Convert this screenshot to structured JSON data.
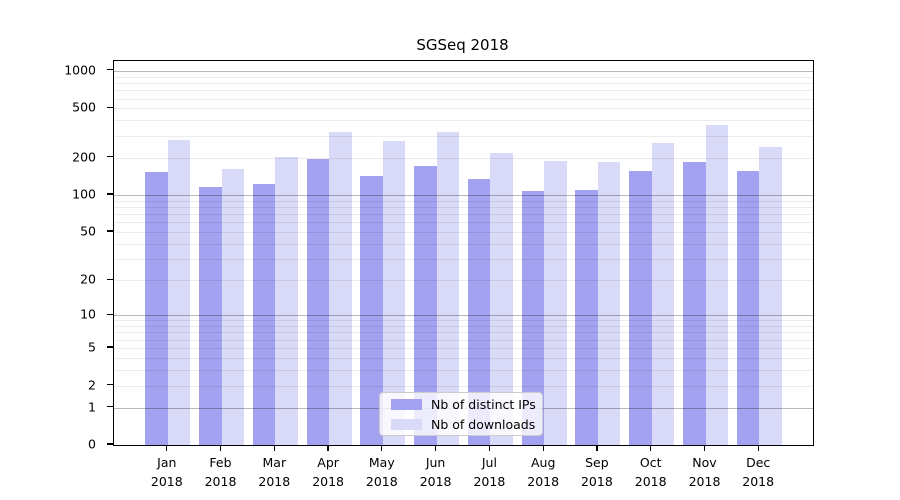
{
  "title": "SGSeq 2018",
  "chart_data": {
    "type": "bar",
    "title": "SGSeq 2018",
    "xlabel": "",
    "ylabel": "",
    "scale": "log10(1+value)",
    "grid": "major lines at powers of 10, minor lines at 2-9 per decade",
    "legend_position": "bottom-center inside plot",
    "categories": [
      "Jan 2018",
      "Feb 2018",
      "Mar 2018",
      "Apr 2018",
      "May 2018",
      "Jun 2018",
      "Jul 2018",
      "Aug 2018",
      "Sep 2018",
      "Oct 2018",
      "Nov 2018",
      "Dec 2018"
    ],
    "yticks": [
      0,
      1,
      2,
      5,
      10,
      20,
      50,
      100,
      200,
      500,
      1000
    ],
    "ylim": [
      0,
      1200
    ],
    "series": [
      {
        "name": "Nb of distinct IPs",
        "color": "#a2a2f0",
        "values": [
          155,
          117,
          124,
          196,
          143,
          171,
          135,
          108,
          110,
          157,
          185,
          156
        ]
      },
      {
        "name": "Nb of downloads",
        "color": "#d9d9f8",
        "values": [
          277,
          162,
          203,
          322,
          271,
          326,
          217,
          187,
          184,
          265,
          370,
          243
        ]
      }
    ]
  }
}
